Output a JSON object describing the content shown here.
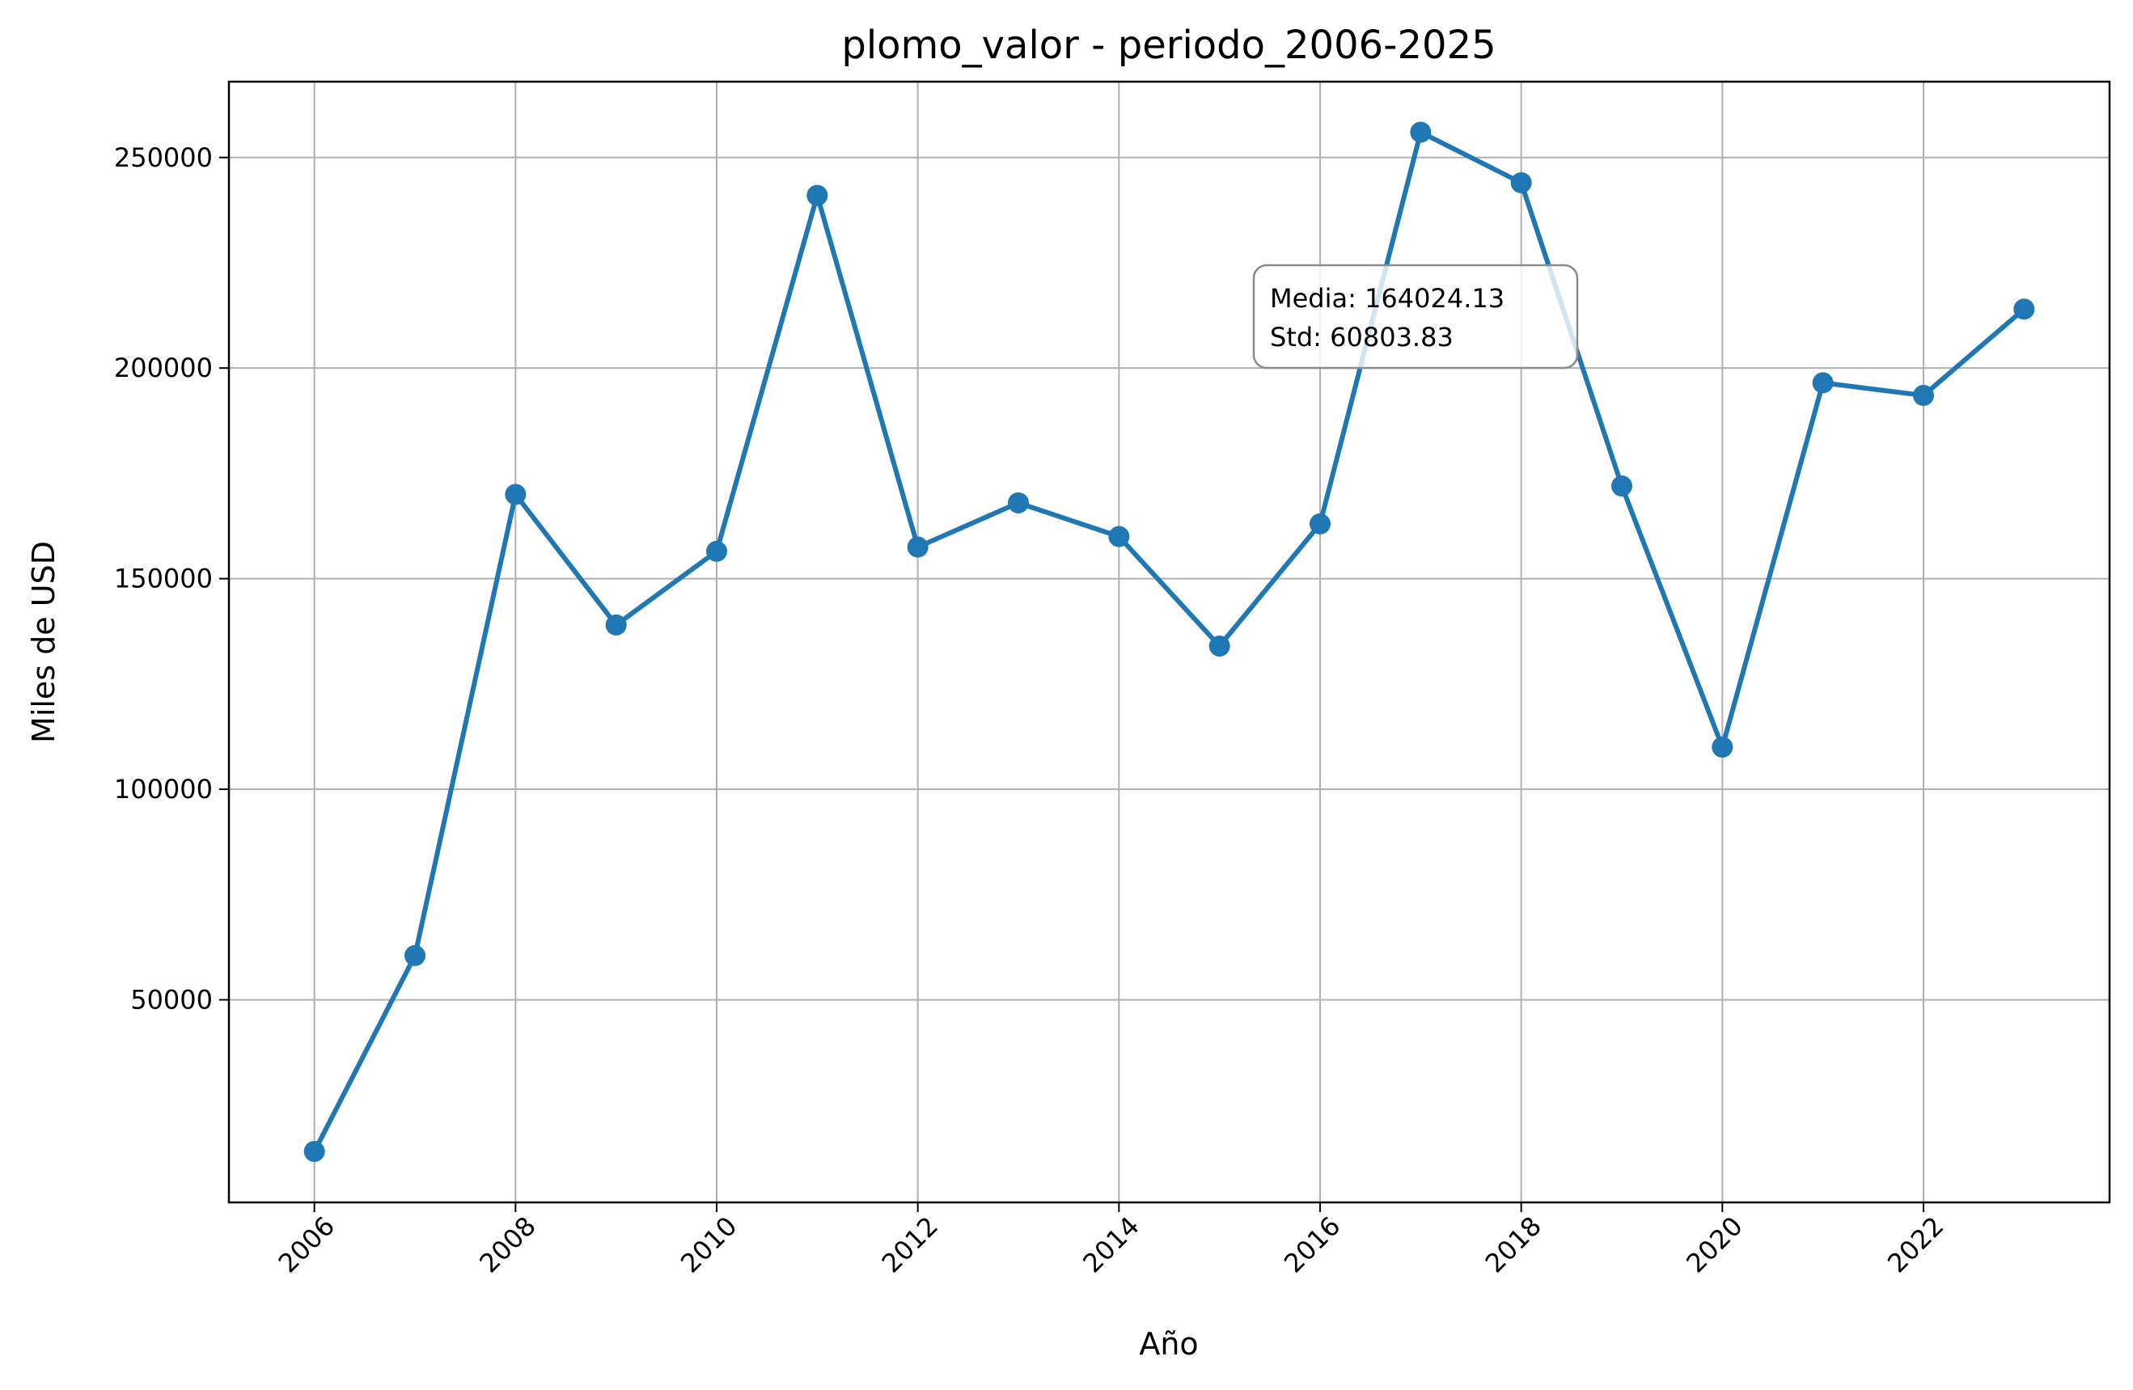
{
  "chart_data": {
    "type": "line",
    "title": "plomo_valor - periodo_2006-2025",
    "xlabel": "Año",
    "ylabel": "Miles de USD",
    "xlim": [
      2005.15,
      2023.85
    ],
    "ylim": [
      1900,
      268000
    ],
    "grid": true,
    "x_ticks": [
      2006,
      2008,
      2010,
      2012,
      2014,
      2016,
      2018,
      2020,
      2022
    ],
    "y_ticks": [
      50000,
      100000,
      150000,
      200000,
      250000
    ],
    "series": [
      {
        "color": "#1f77b4",
        "x": [
          2006,
          2007,
          2008,
          2009,
          2010,
          2011,
          2012,
          2013,
          2014,
          2015,
          2016,
          2017,
          2018,
          2019,
          2020,
          2021,
          2022,
          2023
        ],
        "y": [
          14000,
          60500,
          170000,
          139000,
          156500,
          241000,
          157500,
          168000,
          160000,
          134000,
          163000,
          256000,
          244000,
          172000,
          110000,
          196500,
          193500,
          214000
        ]
      }
    ],
    "annotations": [
      {
        "lines": [
          "Media: 164024.13",
          "Std: 60803.83"
        ]
      }
    ]
  }
}
